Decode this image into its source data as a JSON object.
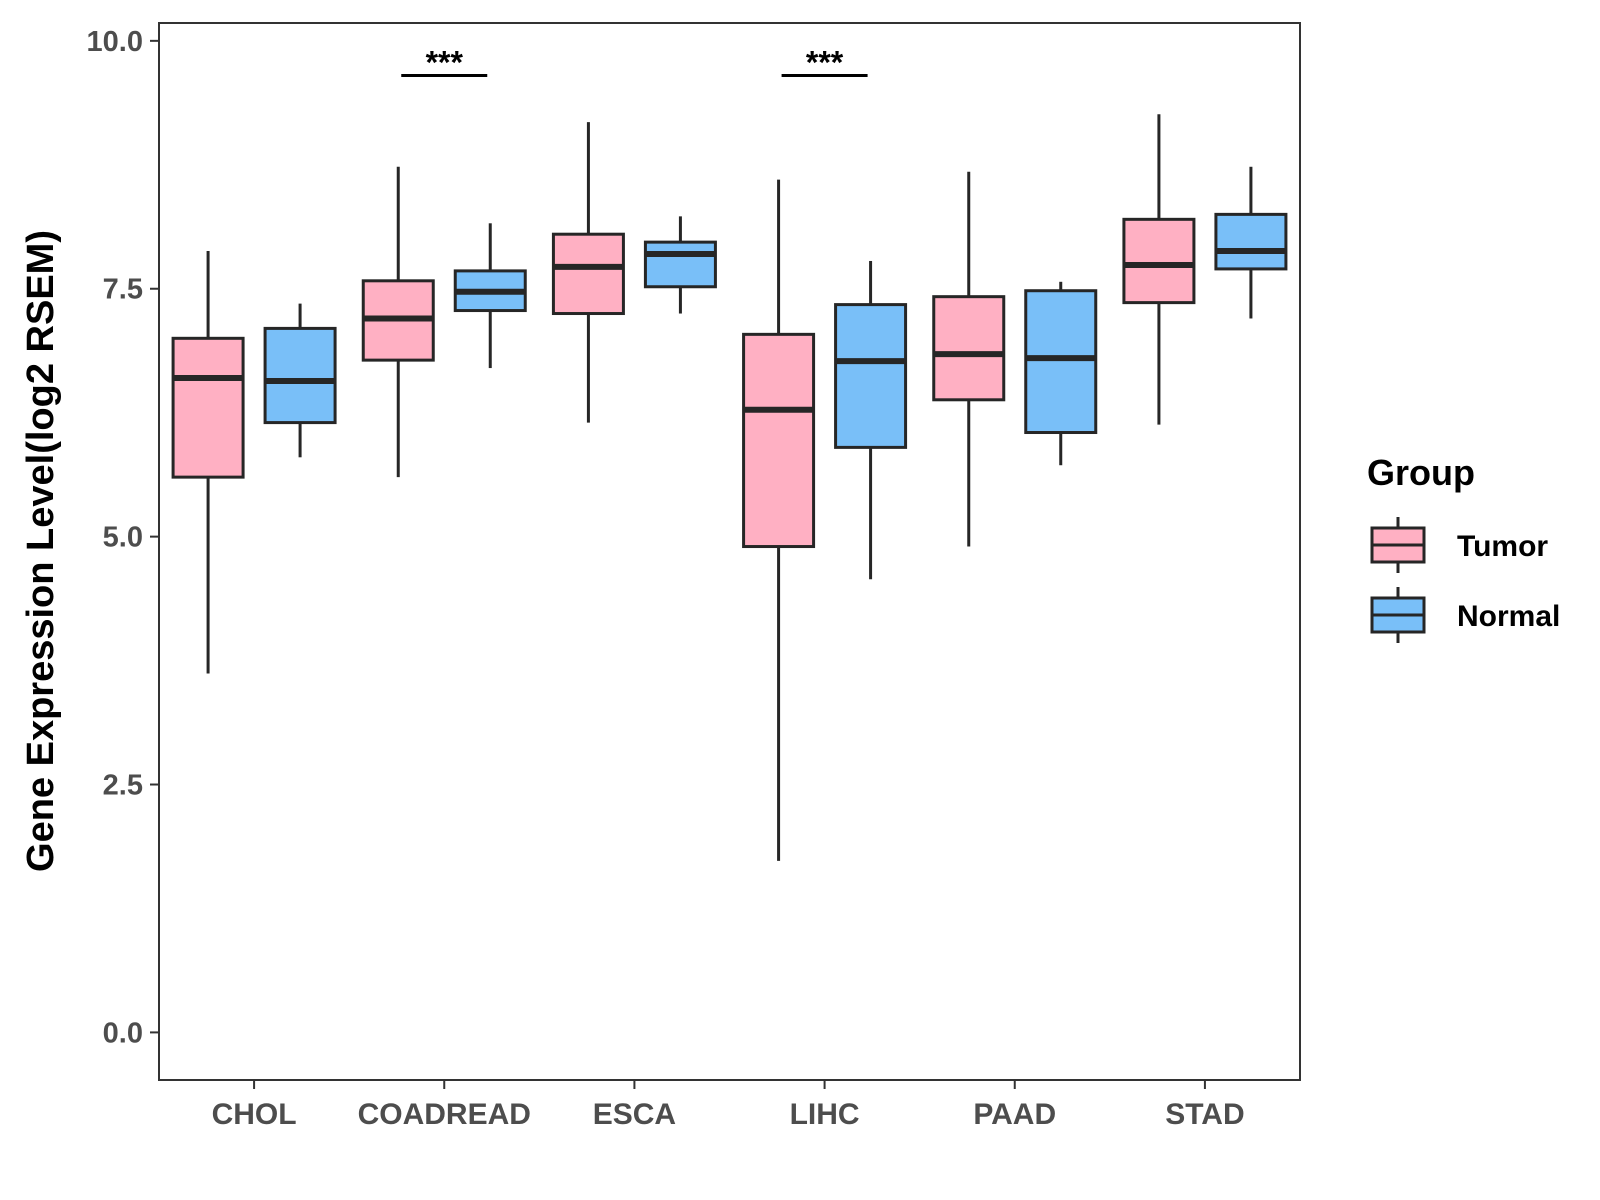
{
  "chart_data": {
    "type": "boxplot",
    "title": "",
    "xlabel": "",
    "ylabel": "Gene Expression Level(log2 RSEM)",
    "ylim": [
      -0.48,
      10.18
    ],
    "yticks": [
      {
        "value": 0.0,
        "label": "0.0"
      },
      {
        "value": 2.5,
        "label": "2.5"
      },
      {
        "value": 5.0,
        "label": "5.0"
      },
      {
        "value": 7.5,
        "label": "7.5"
      },
      {
        "value": 10.0,
        "label": "10.0"
      }
    ],
    "categories": [
      "CHOL",
      "COADREAD",
      "ESCA",
      "LIHC",
      "PAAD",
      "STAD"
    ],
    "legend": {
      "title": "Group",
      "position": "right",
      "entries": [
        {
          "label": "Tumor",
          "color": "#FFB0C3"
        },
        {
          "label": "Normal",
          "color": "#79BFF8"
        }
      ]
    },
    "series": [
      {
        "name": "Tumor",
        "color": "#FFB0C3",
        "boxes": [
          {
            "category": "CHOL",
            "min": 3.62,
            "q1": 5.6,
            "median": 6.6,
            "q3": 7.0,
            "max": 7.88
          },
          {
            "category": "COADREAD",
            "min": 5.6,
            "q1": 6.78,
            "median": 7.2,
            "q3": 7.58,
            "max": 8.73
          },
          {
            "category": "ESCA",
            "min": 6.15,
            "q1": 7.25,
            "median": 7.72,
            "q3": 8.05,
            "max": 9.18
          },
          {
            "category": "LIHC",
            "min": 1.73,
            "q1": 4.9,
            "median": 6.28,
            "q3": 7.04,
            "max": 8.6
          },
          {
            "category": "PAAD",
            "min": 4.9,
            "q1": 6.38,
            "median": 6.84,
            "q3": 7.42,
            "max": 8.68
          },
          {
            "category": "STAD",
            "min": 6.13,
            "q1": 7.36,
            "median": 7.74,
            "q3": 8.2,
            "max": 9.26
          }
        ]
      },
      {
        "name": "Normal",
        "color": "#79BFF8",
        "boxes": [
          {
            "category": "CHOL",
            "min": 5.8,
            "q1": 6.15,
            "median": 6.57,
            "q3": 7.1,
            "max": 7.35
          },
          {
            "category": "COADREAD",
            "min": 6.7,
            "q1": 7.28,
            "median": 7.47,
            "q3": 7.68,
            "max": 8.16
          },
          {
            "category": "ESCA",
            "min": 7.25,
            "q1": 7.52,
            "median": 7.85,
            "q3": 7.97,
            "max": 8.23
          },
          {
            "category": "LIHC",
            "min": 4.57,
            "q1": 5.9,
            "median": 6.77,
            "q3": 7.34,
            "max": 7.78
          },
          {
            "category": "PAAD",
            "min": 5.72,
            "q1": 6.05,
            "median": 6.8,
            "q3": 7.48,
            "max": 7.57
          },
          {
            "category": "STAD",
            "min": 7.2,
            "q1": 7.7,
            "median": 7.88,
            "q3": 8.25,
            "max": 8.73
          }
        ]
      }
    ],
    "annotations": [
      {
        "category": "COADREAD",
        "text": "***",
        "y": 9.65
      },
      {
        "category": "LIHC",
        "text": "***",
        "y": 9.65
      }
    ]
  }
}
